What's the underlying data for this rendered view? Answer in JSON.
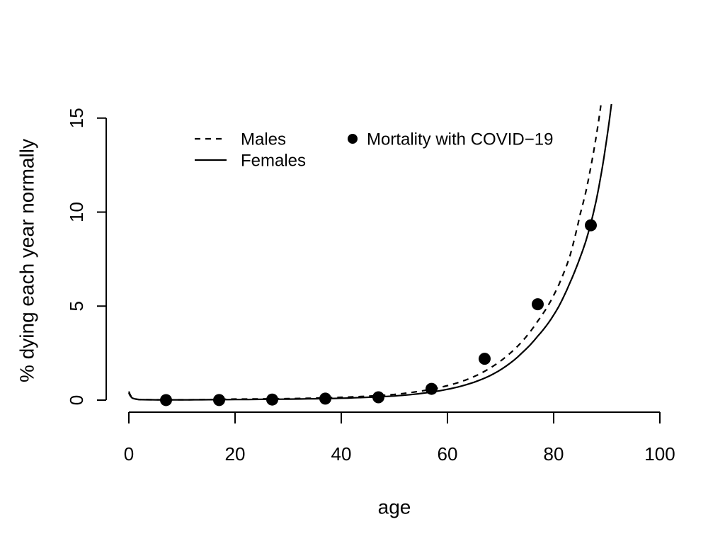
{
  "figure": {
    "background": "#ffffff",
    "ink": "#000000"
  },
  "chart_data": {
    "type": "line",
    "title": "",
    "xlabel": "age",
    "ylabel": "% dying each year normally",
    "xlim": [
      0,
      100
    ],
    "ylim": [
      0,
      15
    ],
    "x_ticks": [
      0,
      20,
      40,
      60,
      80,
      100
    ],
    "y_ticks": [
      0,
      5,
      10,
      15
    ],
    "grid": false,
    "legend_position": "top-left-inside",
    "legend": [
      {
        "label": "Males",
        "sample": "dashed-line"
      },
      {
        "label": "Females",
        "sample": "solid-line"
      },
      {
        "label": "Mortality with COVID−19",
        "sample": "filled-circle"
      }
    ],
    "series": [
      {
        "name": "Males",
        "type": "line",
        "linestyle": "dashed",
        "color": "#000000",
        "x": [
          0,
          0.7,
          2,
          5,
          10,
          15,
          20,
          25,
          30,
          35,
          40,
          45,
          50,
          53,
          56,
          59,
          62,
          65,
          68,
          71,
          74,
          77,
          79,
          81,
          83,
          85,
          86,
          87,
          88,
          89,
          90,
          91
        ],
        "y": [
          0.46,
          0.12,
          0.03,
          0.018,
          0.018,
          0.03,
          0.055,
          0.065,
          0.08,
          0.105,
          0.15,
          0.21,
          0.3,
          0.4,
          0.53,
          0.7,
          0.93,
          1.25,
          1.7,
          2.3,
          3.1,
          4.2,
          5.05,
          6.15,
          7.6,
          9.9,
          11.0,
          12.4,
          14.0,
          15.9,
          18.0,
          20.5
        ]
      },
      {
        "name": "Females",
        "type": "line",
        "linestyle": "solid",
        "color": "#000000",
        "x": [
          0,
          0.7,
          2,
          5,
          10,
          15,
          20,
          25,
          30,
          35,
          40,
          45,
          50,
          53,
          56,
          59,
          62,
          65,
          68,
          71,
          74,
          77,
          79,
          81,
          83,
          85,
          86,
          87,
          88,
          89,
          90,
          91
        ],
        "y": [
          0.38,
          0.1,
          0.025,
          0.015,
          0.015,
          0.022,
          0.03,
          0.04,
          0.052,
          0.072,
          0.1,
          0.15,
          0.22,
          0.29,
          0.39,
          0.52,
          0.7,
          0.95,
          1.3,
          1.8,
          2.5,
          3.4,
          4.1,
          5.0,
          6.2,
          7.6,
          8.4,
          9.4,
          10.6,
          12.1,
          13.9,
          16.0
        ]
      },
      {
        "name": "Mortality with COVID−19",
        "type": "scatter",
        "marker": "filled-circle",
        "color": "#000000",
        "x": [
          7,
          17,
          27,
          37,
          47,
          57,
          67,
          77,
          87
        ],
        "y": [
          0.002,
          0.006,
          0.03,
          0.08,
          0.15,
          0.6,
          2.2,
          5.1,
          9.3
        ]
      }
    ]
  }
}
